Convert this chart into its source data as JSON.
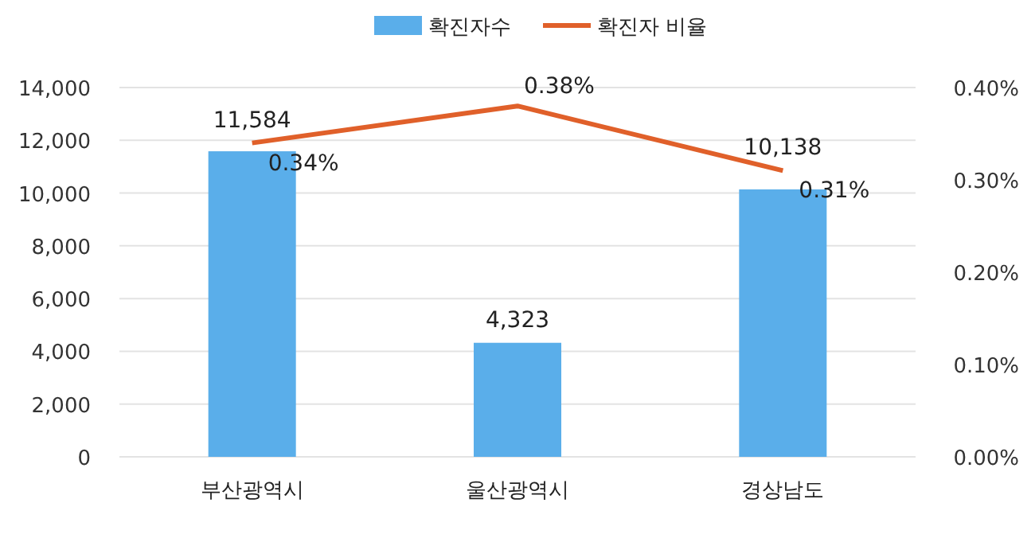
{
  "chart_data": {
    "type": "bar",
    "categories": [
      "부산광역시",
      "울산광역시",
      "경상남도"
    ],
    "series": [
      {
        "name": "확진자수",
        "color": "#5aaeea",
        "values": [
          11584,
          4323,
          10138
        ],
        "value_labels": [
          "11,584",
          "4,323",
          "10,138"
        ]
      },
      {
        "name": "확진자 비율",
        "type": "line",
        "axis": "y2",
        "color": "#e0602a",
        "values": [
          0.34,
          0.38,
          0.31
        ],
        "value_labels": [
          "0.34%",
          "0.38%",
          "0.31%"
        ]
      }
    ],
    "ylim": [
      0,
      14000
    ],
    "yticks": [
      0,
      {
        "value": 2000,
        "label": "2,000"
      },
      {
        "value": 4000,
        "label": "4,000"
      },
      {
        "value": 6000,
        "label": "6,000"
      },
      {
        "value": 8000,
        "label": "8,000"
      },
      {
        "value": 10000,
        "label": "10,000"
      },
      {
        "value": 12000,
        "label": "12,000"
      },
      {
        "value": 14000,
        "label": "14,000"
      }
    ],
    "y2lim": [
      0,
      0.4
    ],
    "y2ticks": [
      {
        "value": 0,
        "label": "0.00%"
      },
      {
        "value": 0.1,
        "label": "0.10%"
      },
      {
        "value": 0.2,
        "label": "0.20%"
      },
      {
        "value": 0.3,
        "label": "0.30%"
      },
      {
        "value": 0.4,
        "label": "0.40%"
      }
    ],
    "grid": "y",
    "legend": "top"
  }
}
